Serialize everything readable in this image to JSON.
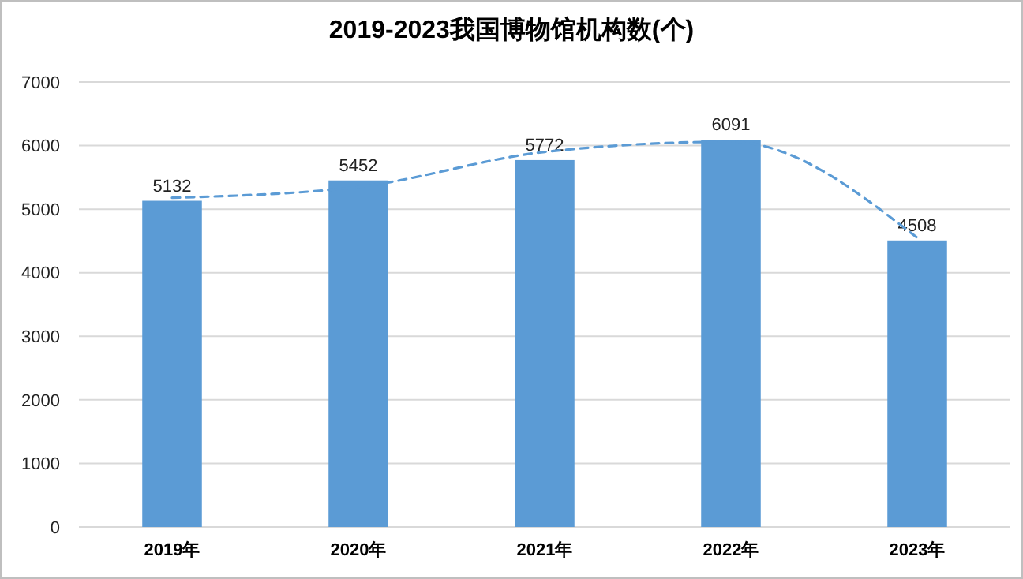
{
  "chart_data": {
    "type": "bar",
    "title": "2019-2023我国博物馆机构数(个)",
    "categories": [
      "2019年",
      "2020年",
      "2021年",
      "2022年",
      "2023年"
    ],
    "series": [
      {
        "color": "#5b9bd5",
        "values": [
          5132,
          5452,
          5772,
          6091,
          4508
        ],
        "value_labels": [
          "5132",
          "5452",
          "5772",
          "6091",
          "4508"
        ]
      },
      {
        "type": "line",
        "color": "#5b9bd5",
        "line_style": "dashed",
        "marker": "none",
        "values": [
          5180,
          5350,
          5900,
          6060,
          4550
        ]
      }
    ],
    "ylim": [
      0,
      7000
    ],
    "yticks": [
      0,
      1000,
      2000,
      3000,
      4000,
      5000,
      6000,
      7000
    ],
    "grid": "y"
  }
}
